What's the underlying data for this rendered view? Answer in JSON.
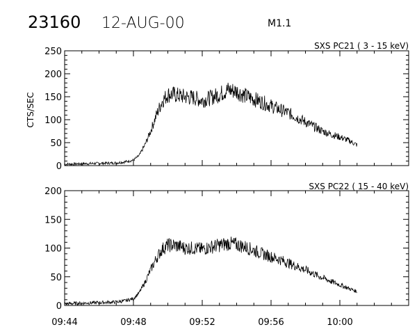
{
  "header": {
    "event_id": "23160",
    "date": "12-AUG-00",
    "flare_class": "M1.1"
  },
  "chart_data": [
    {
      "type": "line",
      "title": "SXS PC21  (  3 - 15 keV)",
      "xlabel": "",
      "ylabel": "CTS/SEC",
      "xlim": [
        "09:44",
        "10:04"
      ],
      "ylim": [
        0,
        250
      ],
      "yticks": [
        0,
        50,
        100,
        150,
        200,
        250
      ],
      "grid": false,
      "series": [
        {
          "x": [
            "09:44:00",
            "09:45:00",
            "09:46:00",
            "09:47:00",
            "09:47:30",
            "09:48:00",
            "09:48:20",
            "09:48:40",
            "09:49:00",
            "09:49:20",
            "09:49:40",
            "09:50:00",
            "09:50:20",
            "09:50:40",
            "09:51:00",
            "09:51:30",
            "09:52:00",
            "09:52:30",
            "09:53:00",
            "09:53:30",
            "09:54:00",
            "09:54:30",
            "09:55:00",
            "09:55:30",
            "09:56:00",
            "09:56:30",
            "09:57:00",
            "09:57:30",
            "09:58:00",
            "09:58:30",
            "09:59:00",
            "09:59:30",
            "10:00:00",
            "10:00:30",
            "10:01:00"
          ],
          "y": [
            3,
            4,
            5,
            6,
            8,
            12,
            22,
            45,
            75,
            110,
            140,
            155,
            155,
            152,
            150,
            148,
            142,
            148,
            155,
            165,
            162,
            152,
            145,
            138,
            130,
            122,
            115,
            105,
            95,
            85,
            75,
            68,
            62,
            55,
            45
          ]
        }
      ]
    },
    {
      "type": "line",
      "title": "SXS PC22  ( 15 - 40 keV)",
      "xlabel": "",
      "ylabel": "",
      "xlim": [
        "09:44",
        "10:04"
      ],
      "ylim": [
        0,
        200
      ],
      "yticks": [
        0,
        50,
        100,
        150,
        200
      ],
      "xticks": [
        "09:44",
        "09:48",
        "09:52",
        "09:56",
        "10:00"
      ],
      "grid": false,
      "series": [
        {
          "x": [
            "09:44:00",
            "09:45:00",
            "09:46:00",
            "09:47:00",
            "09:47:30",
            "09:48:00",
            "09:48:20",
            "09:48:40",
            "09:49:00",
            "09:49:20",
            "09:49:40",
            "09:50:00",
            "09:50:20",
            "09:50:40",
            "09:51:00",
            "09:51:30",
            "09:52:00",
            "09:52:30",
            "09:53:00",
            "09:53:30",
            "09:54:00",
            "09:54:30",
            "09:55:00",
            "09:55:30",
            "09:56:00",
            "09:56:30",
            "09:57:00",
            "09:57:30",
            "09:58:00",
            "09:58:30",
            "09:59:00",
            "09:59:30",
            "10:00:00",
            "10:00:30",
            "10:01:00"
          ],
          "y": [
            3,
            4,
            5,
            6,
            8,
            12,
            22,
            40,
            62,
            82,
            98,
            105,
            105,
            103,
            100,
            100,
            98,
            102,
            105,
            108,
            106,
            102,
            96,
            90,
            85,
            80,
            74,
            68,
            62,
            55,
            48,
            42,
            36,
            30,
            24
          ]
        }
      ]
    }
  ]
}
